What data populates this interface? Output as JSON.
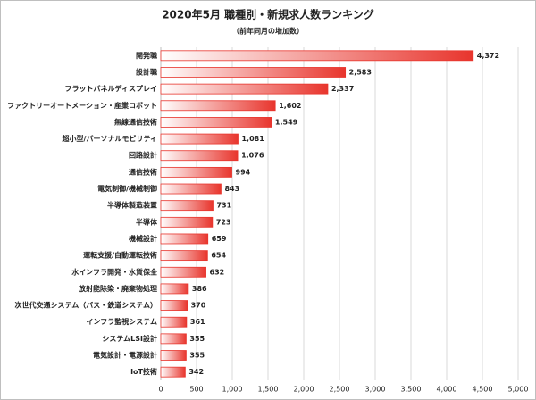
{
  "chart_data": {
    "type": "bar",
    "orientation": "horizontal",
    "title": "2020年5月 職種別・新規求人数ランキング",
    "subtitle": "（前年同月の増加数）",
    "categories": [
      "開発職",
      "設計職",
      "フラットパネルディスプレイ",
      "ファクトリーオートメーション・産業ロボット",
      "無線通信技術",
      "超小型/パーソナルモビリティ",
      "回路設計",
      "通信技術",
      "電気制御/機械制御",
      "半導体製造装置",
      "半導体",
      "機械設計",
      "運転支援/自動運転技術",
      "水インフラ開発・水質保全",
      "放射能除染・廃棄物処理",
      "次世代交通システム（バス・鉄道システム）",
      "インフラ監視システム",
      "システムLSI設計",
      "電気設計・電源設計",
      "IoT技術"
    ],
    "values": [
      4372,
      2583,
      2337,
      1602,
      1549,
      1081,
      1076,
      994,
      843,
      731,
      723,
      659,
      654,
      632,
      386,
      370,
      361,
      355,
      355,
      342
    ],
    "value_labels": [
      "4,372",
      "2,583",
      "2,337",
      "1,602",
      "1,549",
      "1,081",
      "1,076",
      "994",
      "843",
      "731",
      "723",
      "659",
      "654",
      "632",
      "386",
      "370",
      "361",
      "355",
      "355",
      "342"
    ],
    "color": "#e8352d",
    "xlim": [
      0,
      5000
    ],
    "xticks": [
      0,
      500,
      {
        "value": 1000,
        "label": "1,000"
      },
      {
        "value": 1500,
        "label": "1,500"
      },
      {
        "value": 2000,
        "label": "2,000"
      },
      {
        "value": 2500,
        "label": "2,500"
      },
      {
        "value": 3000,
        "label": "3,000"
      },
      {
        "value": 3500,
        "label": "3,500"
      },
      {
        "value": 4000,
        "label": "4,000"
      },
      {
        "value": 4500,
        "label": "4,500"
      },
      {
        "value": 5000,
        "label": "5,000"
      }
    ],
    "grid": true
  }
}
